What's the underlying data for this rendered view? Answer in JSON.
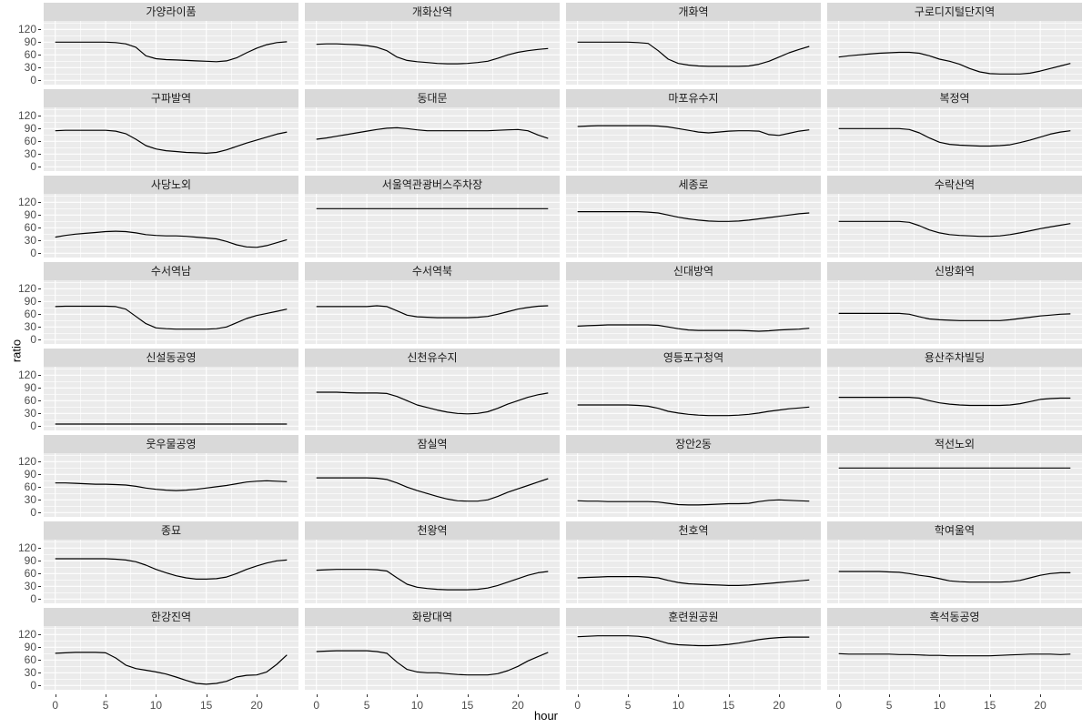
{
  "figure": {
    "ylabel": "ratio",
    "xlabel": "hour"
  },
  "axes": {
    "y_ticks": [
      120,
      90,
      60,
      30,
      0
    ],
    "x_ticks": [
      0,
      5,
      10,
      15,
      20
    ]
  },
  "colors": {
    "strip_bg": "#d9d9d9",
    "panel_bg": "#ebebeb",
    "gridline": "#ffffff",
    "line": "#000000",
    "axis_text": "#4d4d4d"
  },
  "chart_data": {
    "type": "line",
    "layout": "facet_wrap 8 rows x 4 cols",
    "xlabel": "hour",
    "ylabel": "ratio",
    "x": [
      0,
      1,
      2,
      3,
      4,
      5,
      6,
      7,
      8,
      9,
      10,
      11,
      12,
      13,
      14,
      15,
      16,
      17,
      18,
      19,
      20,
      21,
      22,
      23
    ],
    "xlim": [
      0,
      23
    ],
    "ylim": [
      0,
      120
    ],
    "grid": "major and minor, white on gray panel",
    "legend": "none",
    "series": [
      {
        "name": "가양라이품",
        "values": [
          90,
          90,
          90,
          90,
          90,
          90,
          89,
          86,
          78,
          58,
          51,
          49,
          48,
          47,
          46,
          45,
          44,
          46,
          53,
          65,
          76,
          84,
          89,
          91
        ]
      },
      {
        "name": "개화산역",
        "values": [
          85,
          86,
          86,
          85,
          84,
          82,
          78,
          70,
          55,
          47,
          44,
          42,
          40,
          39,
          39,
          40,
          42,
          45,
          52,
          60,
          66,
          70,
          73,
          75
        ]
      },
      {
        "name": "개화역",
        "values": [
          90,
          90,
          90,
          90,
          90,
          90,
          89,
          87,
          70,
          50,
          40,
          36,
          34,
          33,
          33,
          33,
          33,
          34,
          38,
          45,
          55,
          65,
          73,
          80
        ]
      },
      {
        "name": "구로디지털단지역",
        "values": [
          55,
          58,
          60,
          62,
          64,
          65,
          66,
          66,
          64,
          58,
          50,
          45,
          38,
          28,
          20,
          16,
          15,
          15,
          15,
          17,
          22,
          28,
          34,
          40
        ]
      },
      {
        "name": "구파발역",
        "values": [
          85,
          86,
          86,
          86,
          86,
          86,
          84,
          78,
          65,
          50,
          42,
          38,
          36,
          34,
          33,
          32,
          34,
          40,
          48,
          56,
          63,
          70,
          77,
          82
        ]
      },
      {
        "name": "동대문",
        "values": [
          65,
          68,
          72,
          76,
          80,
          84,
          88,
          91,
          92,
          90,
          87,
          85,
          85,
          85,
          85,
          85,
          85,
          85,
          86,
          87,
          88,
          85,
          75,
          67
        ]
      },
      {
        "name": "마포유수지",
        "values": [
          95,
          96,
          97,
          97,
          97,
          97,
          97,
          97,
          96,
          94,
          90,
          86,
          82,
          80,
          82,
          84,
          85,
          85,
          84,
          76,
          74,
          79,
          84,
          87
        ]
      },
      {
        "name": "복정역",
        "values": [
          90,
          90,
          90,
          90,
          90,
          90,
          90,
          88,
          80,
          68,
          58,
          53,
          51,
          50,
          49,
          49,
          50,
          52,
          57,
          63,
          70,
          77,
          82,
          85
        ]
      },
      {
        "name": "사당노외",
        "values": [
          38,
          42,
          45,
          47,
          49,
          51,
          52,
          51,
          48,
          44,
          42,
          41,
          41,
          40,
          38,
          36,
          34,
          28,
          20,
          15,
          14,
          18,
          25,
          32
        ]
      },
      {
        "name": "서울역관광버스주차장",
        "values": [
          105,
          105,
          105,
          105,
          105,
          105,
          105,
          105,
          105,
          105,
          105,
          105,
          105,
          105,
          105,
          105,
          105,
          105,
          105,
          105,
          105,
          105,
          105,
          105
        ]
      },
      {
        "name": "세종로",
        "values": [
          98,
          98,
          98,
          98,
          98,
          98,
          98,
          97,
          95,
          90,
          85,
          81,
          78,
          76,
          75,
          75,
          76,
          78,
          81,
          84,
          87,
          90,
          93,
          95
        ]
      },
      {
        "name": "수락산역",
        "values": [
          75,
          75,
          75,
          75,
          75,
          75,
          75,
          73,
          65,
          55,
          48,
          44,
          42,
          41,
          40,
          40,
          41,
          44,
          48,
          53,
          58,
          62,
          66,
          70
        ]
      },
      {
        "name": "수서역남",
        "values": [
          78,
          79,
          79,
          79,
          79,
          79,
          78,
          72,
          55,
          38,
          28,
          26,
          25,
          25,
          25,
          25,
          26,
          30,
          40,
          50,
          57,
          62,
          67,
          72
        ]
      },
      {
        "name": "수서역북",
        "values": [
          78,
          78,
          78,
          78,
          78,
          78,
          80,
          78,
          68,
          58,
          54,
          53,
          52,
          52,
          52,
          52,
          53,
          55,
          60,
          66,
          72,
          76,
          79,
          80
        ]
      },
      {
        "name": "신대방역",
        "values": [
          32,
          33,
          34,
          35,
          35,
          35,
          35,
          35,
          34,
          30,
          26,
          23,
          22,
          22,
          22,
          22,
          22,
          21,
          20,
          21,
          23,
          24,
          25,
          27
        ]
      },
      {
        "name": "신방화역",
        "values": [
          62,
          62,
          62,
          62,
          62,
          62,
          62,
          60,
          54,
          49,
          47,
          46,
          45,
          45,
          45,
          45,
          45,
          47,
          50,
          53,
          56,
          58,
          60,
          61
        ]
      },
      {
        "name": "신설동공영",
        "values": [
          5,
          5,
          5,
          5,
          5,
          5,
          5,
          5,
          5,
          5,
          5,
          5,
          5,
          5,
          5,
          5,
          5,
          5,
          5,
          5,
          5,
          5,
          5,
          5
        ]
      },
      {
        "name": "신천유수지",
        "values": [
          80,
          80,
          80,
          79,
          78,
          78,
          78,
          77,
          70,
          60,
          50,
          44,
          38,
          33,
          30,
          29,
          30,
          34,
          42,
          52,
          60,
          68,
          74,
          78
        ]
      },
      {
        "name": "영등포구청역",
        "values": [
          50,
          50,
          50,
          50,
          50,
          50,
          49,
          47,
          42,
          35,
          31,
          28,
          26,
          25,
          25,
          25,
          26,
          28,
          31,
          35,
          38,
          41,
          43,
          45
        ]
      },
      {
        "name": "용산주차빌딩",
        "values": [
          68,
          68,
          68,
          68,
          68,
          68,
          68,
          68,
          66,
          60,
          55,
          52,
          50,
          49,
          49,
          49,
          49,
          50,
          53,
          58,
          63,
          65,
          66,
          66
        ]
      },
      {
        "name": "웃우물공영",
        "values": [
          70,
          70,
          69,
          68,
          67,
          67,
          66,
          65,
          62,
          58,
          55,
          53,
          52,
          53,
          55,
          58,
          61,
          64,
          68,
          72,
          74,
          75,
          74,
          73
        ]
      },
      {
        "name": "잠실역",
        "values": [
          82,
          82,
          82,
          82,
          82,
          82,
          81,
          78,
          70,
          60,
          52,
          45,
          38,
          32,
          28,
          27,
          27,
          30,
          38,
          48,
          56,
          64,
          72,
          80
        ]
      },
      {
        "name": "장안2동",
        "values": [
          28,
          27,
          27,
          26,
          26,
          26,
          26,
          26,
          25,
          22,
          19,
          18,
          18,
          19,
          20,
          21,
          21,
          22,
          26,
          29,
          30,
          29,
          28,
          27
        ]
      },
      {
        "name": "적선노외",
        "values": [
          105,
          105,
          105,
          105,
          105,
          105,
          105,
          105,
          105,
          105,
          105,
          105,
          105,
          105,
          105,
          105,
          105,
          105,
          105,
          105,
          105,
          105,
          105,
          105
        ]
      },
      {
        "name": "종묘",
        "values": [
          95,
          95,
          95,
          95,
          95,
          95,
          94,
          92,
          88,
          80,
          70,
          62,
          55,
          50,
          47,
          47,
          48,
          52,
          60,
          70,
          78,
          85,
          90,
          92
        ]
      },
      {
        "name": "천왕역",
        "values": [
          68,
          69,
          70,
          70,
          70,
          70,
          69,
          66,
          50,
          35,
          28,
          25,
          23,
          22,
          22,
          22,
          23,
          26,
          32,
          40,
          48,
          56,
          62,
          65
        ]
      },
      {
        "name": "천호역",
        "values": [
          50,
          51,
          52,
          53,
          53,
          53,
          53,
          52,
          50,
          44,
          39,
          36,
          35,
          34,
          33,
          32,
          32,
          33,
          35,
          37,
          39,
          41,
          43,
          45
        ]
      },
      {
        "name": "학여울역",
        "values": [
          65,
          65,
          65,
          65,
          65,
          64,
          63,
          60,
          56,
          53,
          48,
          43,
          41,
          40,
          40,
          40,
          40,
          41,
          44,
          50,
          56,
          60,
          62,
          62
        ]
      },
      {
        "name": "한강진역",
        "values": [
          76,
          77,
          78,
          78,
          78,
          77,
          65,
          48,
          40,
          36,
          32,
          27,
          20,
          12,
          5,
          3,
          5,
          10,
          20,
          24,
          25,
          32,
          50,
          72
        ]
      },
      {
        "name": "화랑대역",
        "values": [
          80,
          81,
          82,
          82,
          82,
          82,
          80,
          76,
          55,
          38,
          32,
          30,
          30,
          28,
          26,
          25,
          25,
          25,
          28,
          35,
          45,
          58,
          68,
          78
        ]
      },
      {
        "name": "훈련원공원",
        "values": [
          115,
          116,
          117,
          117,
          117,
          117,
          116,
          113,
          106,
          99,
          96,
          95,
          94,
          94,
          95,
          97,
          100,
          104,
          108,
          111,
          113,
          114,
          114,
          114
        ]
      },
      {
        "name": "흑석동공영",
        "values": [
          75,
          74,
          74,
          74,
          74,
          74,
          73,
          73,
          72,
          71,
          71,
          70,
          70,
          70,
          70,
          70,
          71,
          72,
          73,
          74,
          74,
          74,
          73,
          74
        ]
      }
    ]
  }
}
